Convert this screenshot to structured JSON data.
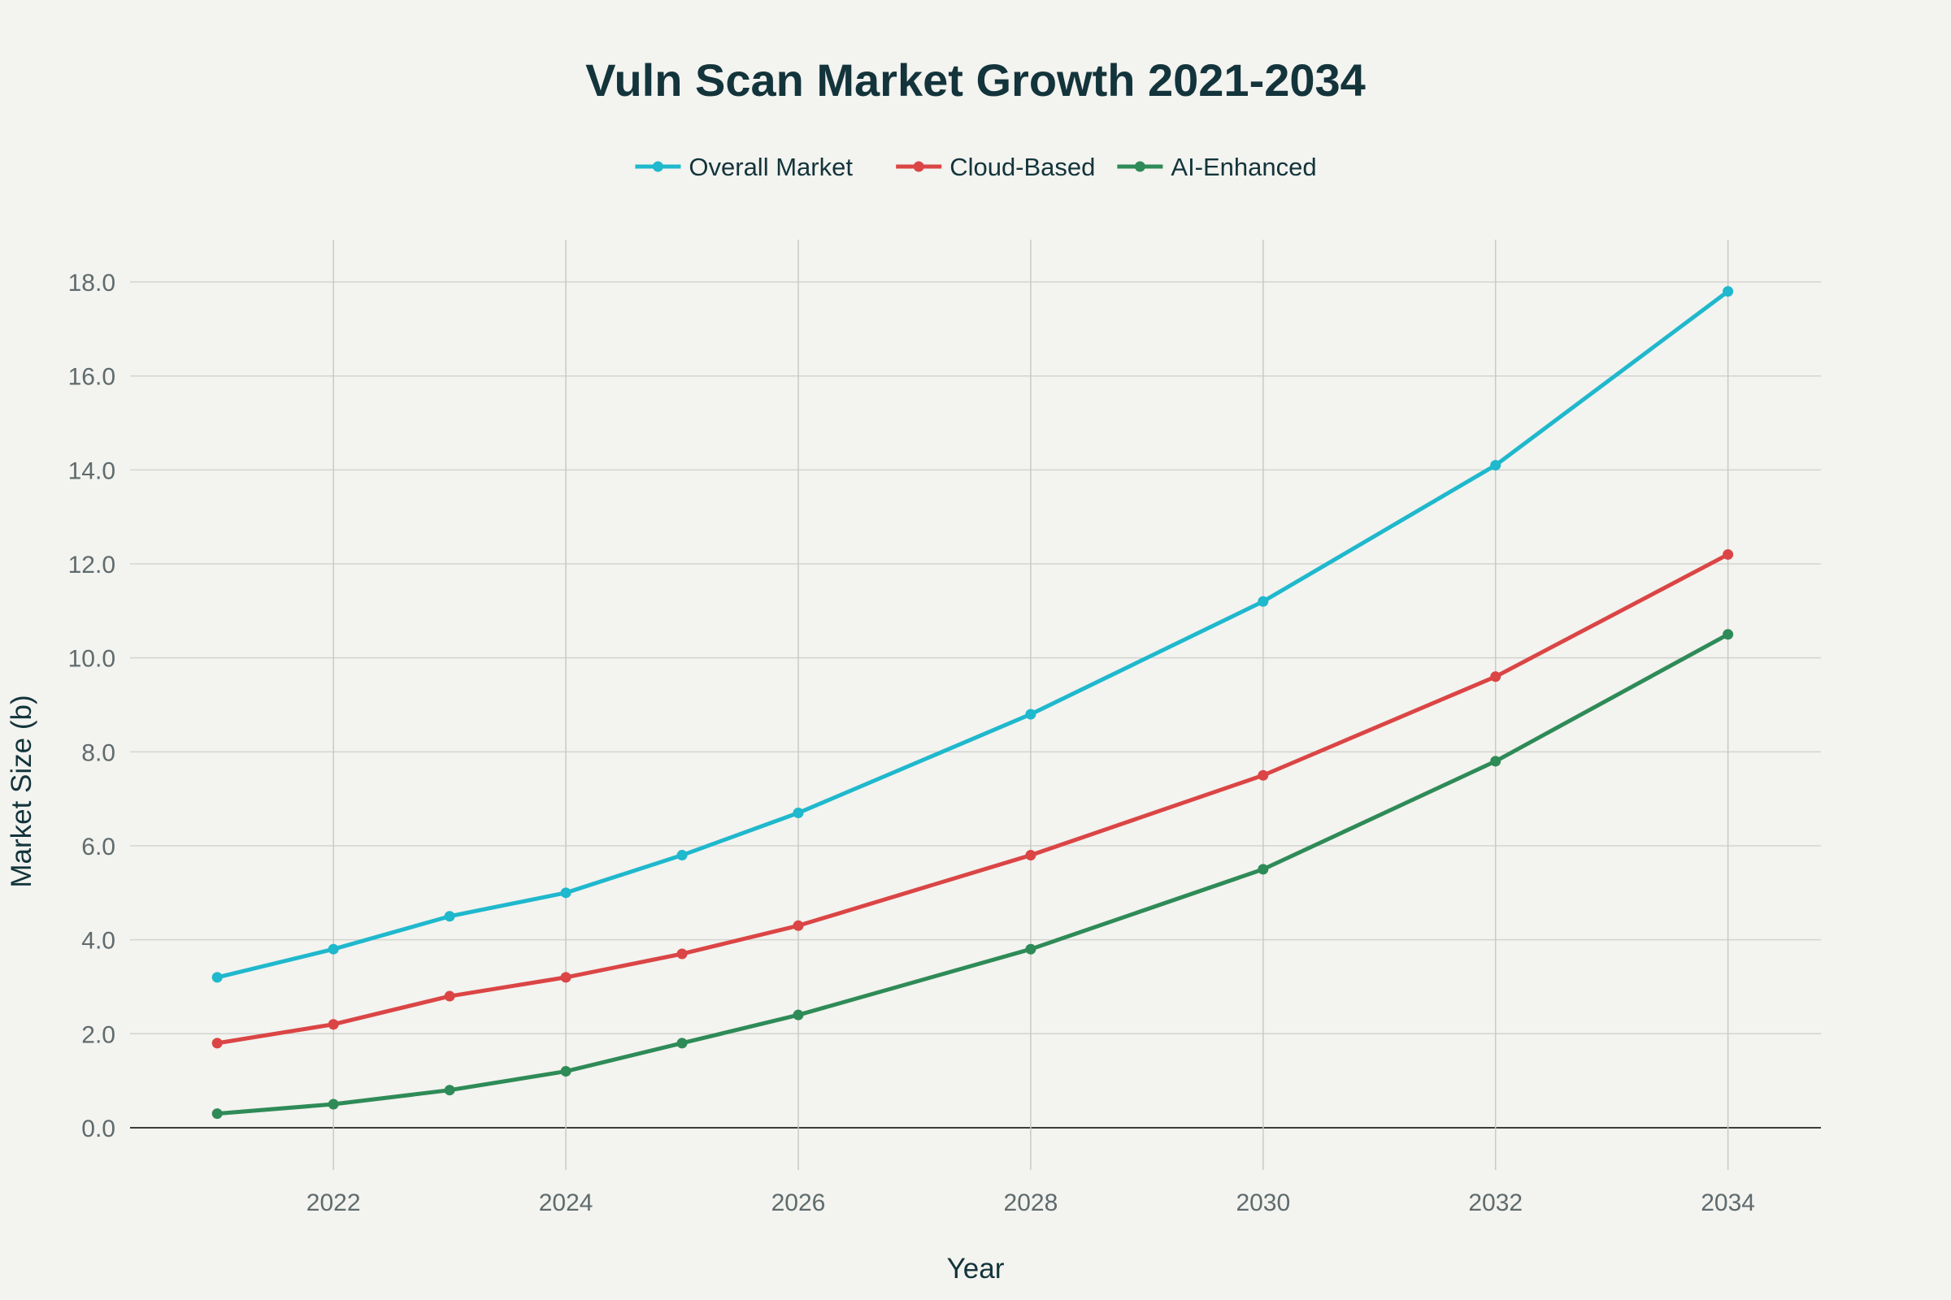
{
  "chart_data": {
    "type": "line",
    "title": "Vuln Scan Market Growth 2021-2034",
    "xlabel": "Year",
    "ylabel": "Market Size (b)",
    "x": [
      2021,
      2022,
      2023,
      2024,
      2025,
      2026,
      2028,
      2030,
      2032,
      2034
    ],
    "xlim": [
      2020.25,
      2034.8
    ],
    "ylim": [
      -0.9,
      18.9
    ],
    "x_ticks": [
      2022,
      2024,
      2026,
      2028,
      2030,
      2032,
      2034
    ],
    "y_ticks": [
      0,
      2,
      4,
      6,
      8,
      10,
      12,
      14,
      16,
      18
    ],
    "y_tick_labels": [
      "0.0",
      "2.0",
      "4.0",
      "6.0",
      "8.0",
      "10.0",
      "12.0",
      "14.0",
      "16.0",
      "18.0"
    ],
    "grid": true,
    "legend_position": "top-center",
    "series": [
      {
        "name": "Overall Market",
        "color": "#1fb8cd",
        "values": [
          3.2,
          3.8,
          4.5,
          5.0,
          5.8,
          6.7,
          8.8,
          11.2,
          14.1,
          17.8
        ]
      },
      {
        "name": "Cloud-Based",
        "color": "#db4545",
        "values": [
          1.8,
          2.2,
          2.8,
          3.2,
          3.7,
          4.3,
          5.8,
          7.5,
          9.6,
          12.2
        ]
      },
      {
        "name": "AI-Enhanced",
        "color": "#2e8b57",
        "values": [
          0.3,
          0.5,
          0.8,
          1.2,
          1.8,
          2.4,
          3.8,
          5.5,
          7.8,
          10.5
        ]
      }
    ]
  }
}
